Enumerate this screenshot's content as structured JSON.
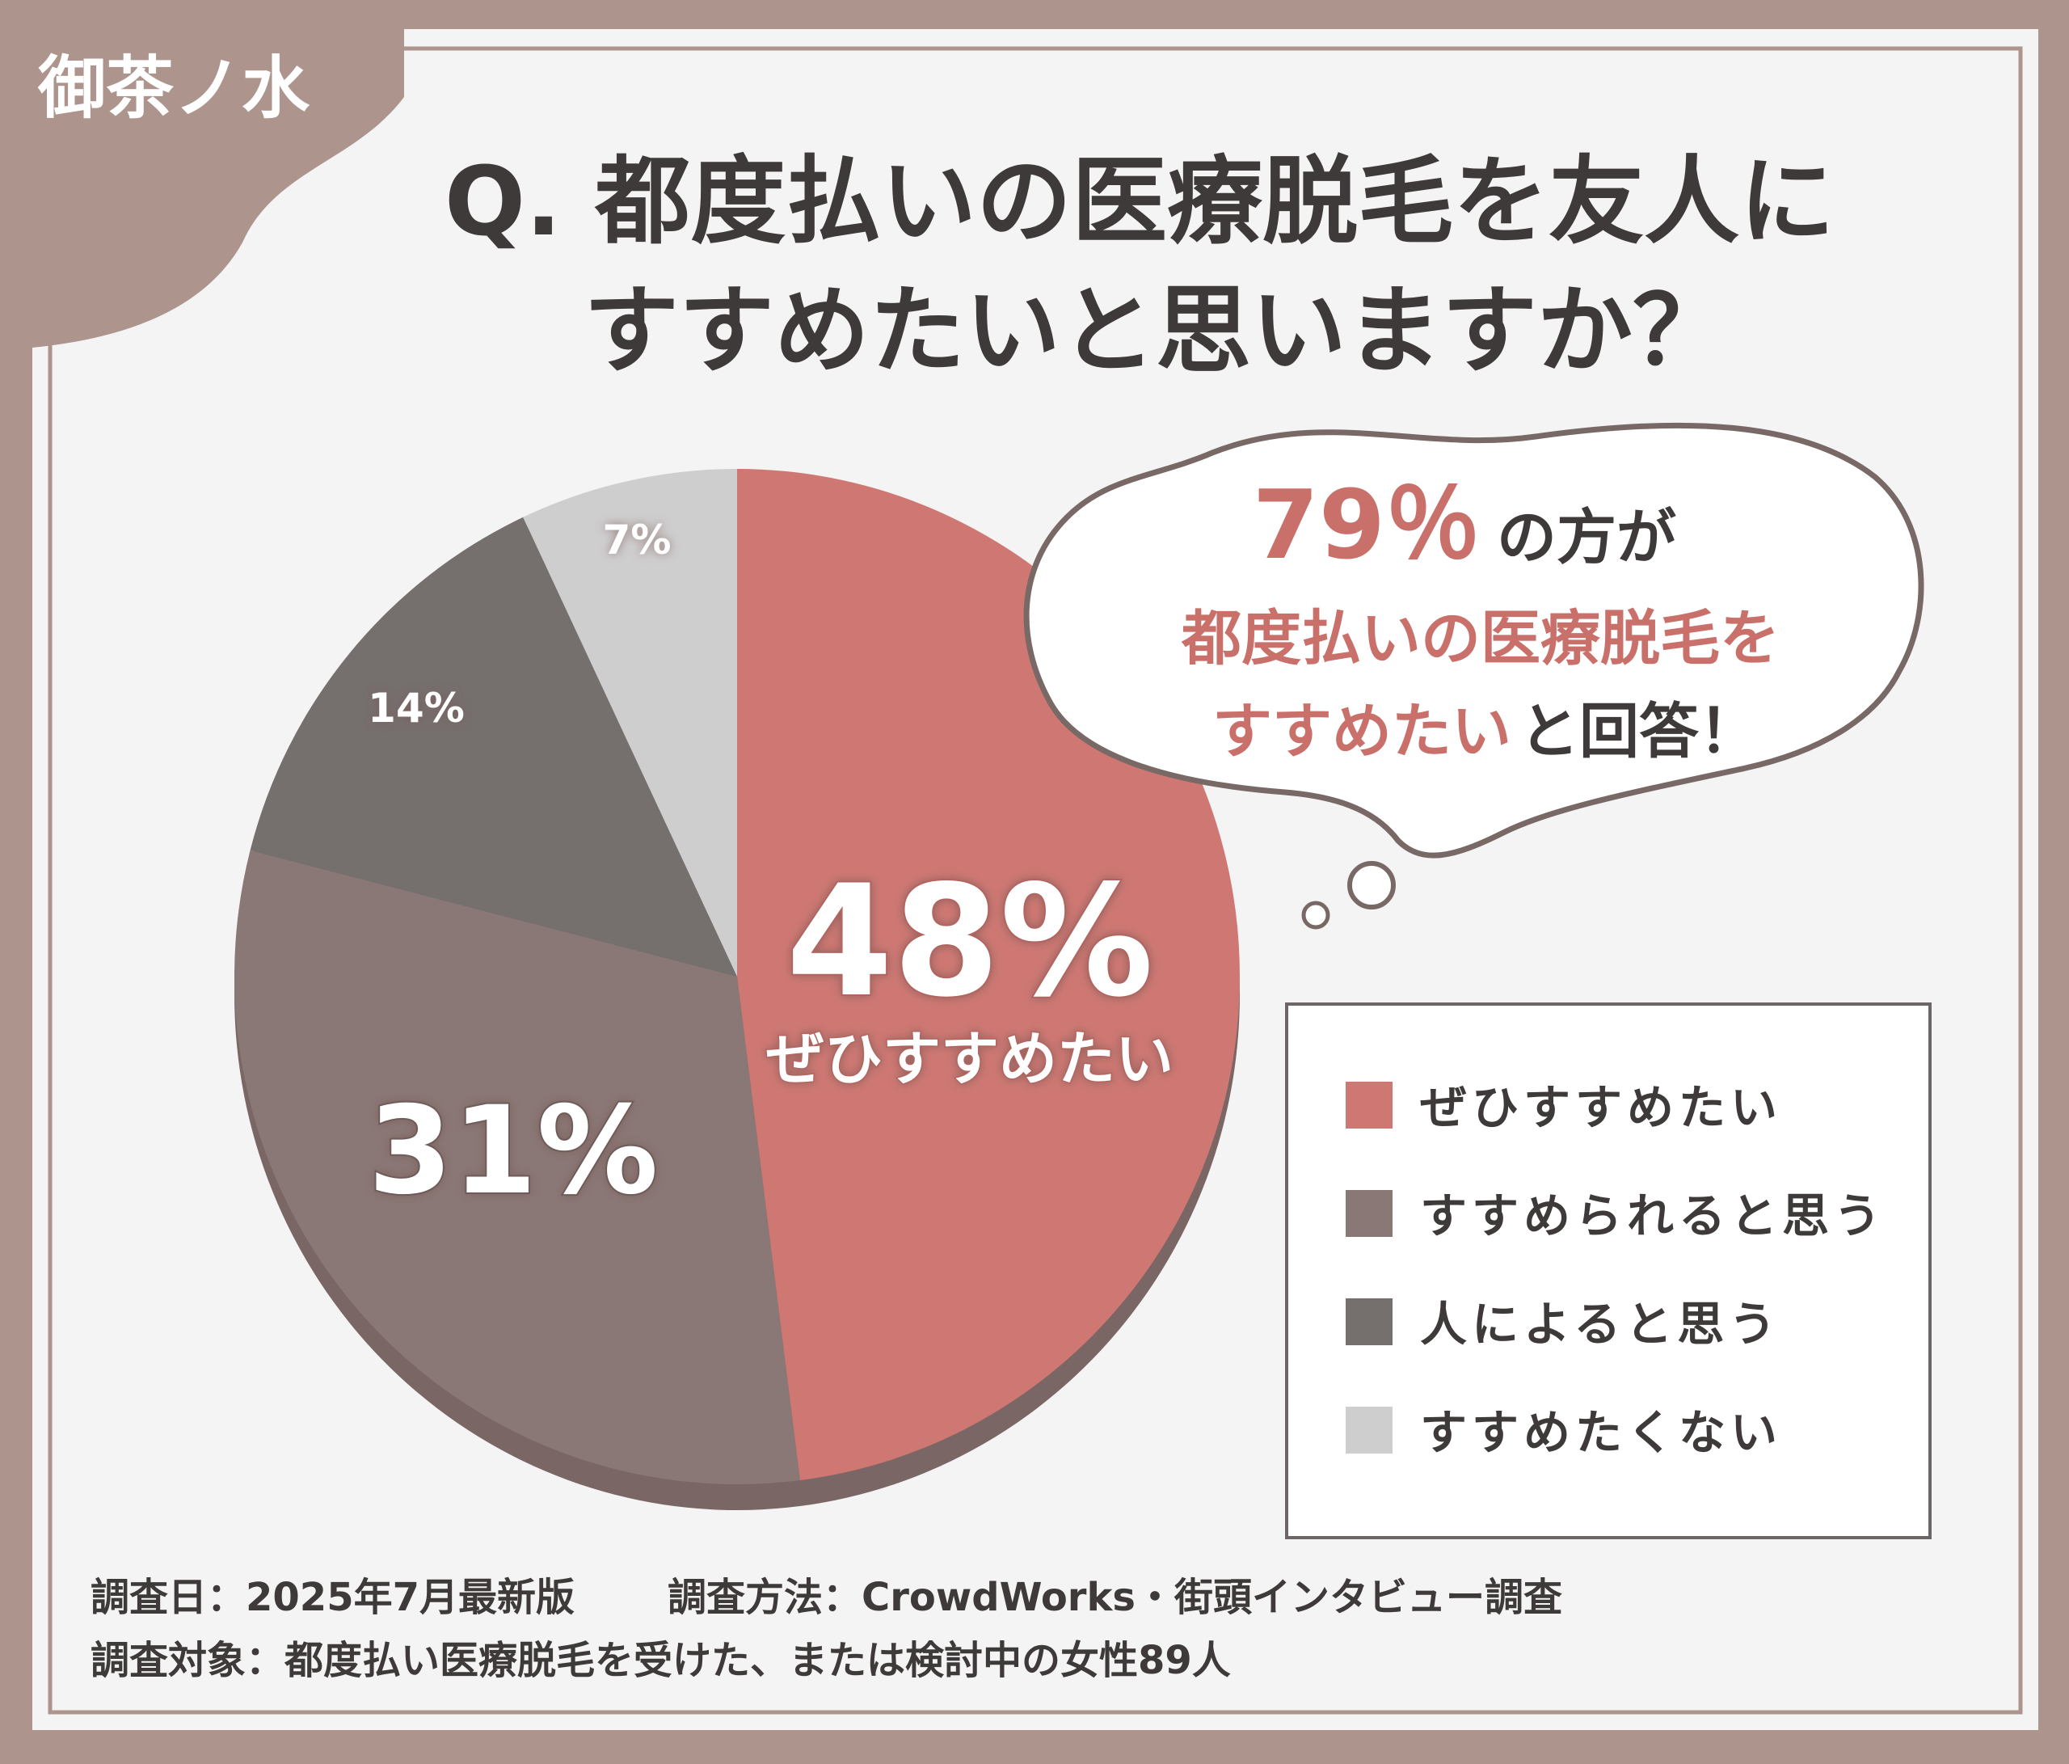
{
  "brand": {
    "label": "御茶ノ水"
  },
  "question": {
    "line1": "Q. 都度払いの医療脱毛を友人に",
    "line2": "すすめたいと思いますか？"
  },
  "callout": {
    "highlight_pct": "79％",
    "line1_rest": "の方が",
    "line2": "都度払いの医療脱毛を",
    "line3_highlight": "すすめたい",
    "line3_rest": "と回答！"
  },
  "big_labels": {
    "main_pct": "48%",
    "main_caption": "ぜひすすめたい",
    "second_pct": "31%",
    "third_pct": "14%",
    "fourth_pct": "7%"
  },
  "legend": [
    {
      "label": "ぜひすすめたい",
      "color": "#cf7873"
    },
    {
      "label": "すすめられると思う",
      "color": "#8a7876"
    },
    {
      "label": "人によると思う",
      "color": "#756f6e"
    },
    {
      "label": "すすめたくない",
      "color": "#cfcecf"
    }
  ],
  "footer": {
    "date": "調査日：2025年7月最新版",
    "method": "調査方法：CrowdWorks・街頭インタビュー調査",
    "target": "調査対象：都度払い医療脱毛を受けた、または検討中の女性89人"
  },
  "colors": {
    "frame": "#ad958d",
    "accent": "#c9706b",
    "text_dark": "#3e3a39"
  },
  "chart_data": {
    "type": "pie",
    "title": "Q. 都度払いの医療脱毛を友人にすすめたいと思いますか？",
    "categories": [
      "ぜひすすめたい",
      "すすめられると思う",
      "人によると思う",
      "すすめたくない"
    ],
    "values": [
      48,
      31,
      14,
      7
    ],
    "unit": "%",
    "colors": [
      "#cf7873",
      "#8a7876",
      "#756f6e",
      "#cfcecf"
    ],
    "legend_position": "right"
  }
}
